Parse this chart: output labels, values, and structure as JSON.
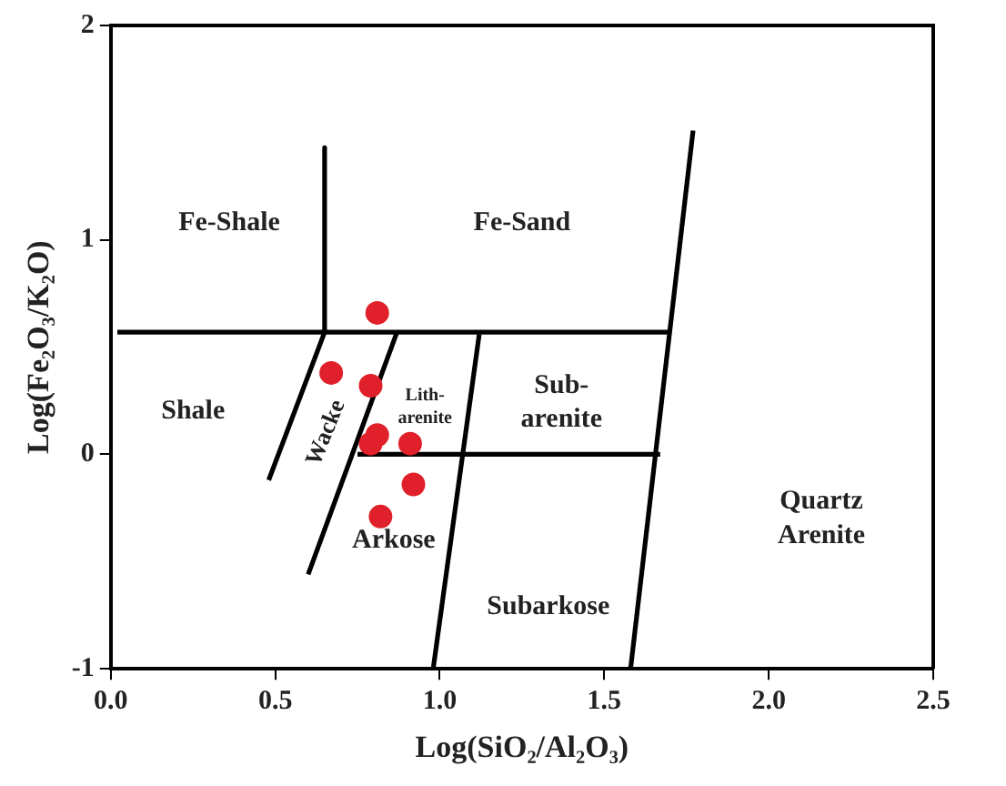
{
  "chart_data": {
    "type": "scatter",
    "xlabel": "Log(SiO₂/Al₂O₃)",
    "ylabel": "Log(Fe₂O₃/K₂O)",
    "xlim": [
      0,
      2.5
    ],
    "ylim": [
      -1,
      2
    ],
    "xticks": [
      {
        "value": 0,
        "label": "0.0"
      },
      {
        "value": 0.5,
        "label": "0.5"
      },
      {
        "value": 1,
        "label": "1.0"
      },
      {
        "value": 1.5,
        "label": "1.5"
      },
      {
        "value": 2,
        "label": "2.0"
      },
      {
        "value": 2.5,
        "label": "2.5"
      }
    ],
    "yticks": [
      -1,
      0,
      1,
      2
    ],
    "grid": false,
    "legend": false,
    "series": [
      {
        "type": "line",
        "color": "#000000",
        "marker": "none",
        "x": [
          0.65,
          0.65,
          0.48
        ],
        "values": [
          1.43,
          0.57,
          -0.12
        ]
      },
      {
        "type": "line",
        "color": "#000000",
        "marker": "none",
        "x": [
          0.02,
          1.7
        ],
        "values": [
          0.57,
          0.57
        ]
      },
      {
        "type": "line",
        "color": "#000000",
        "marker": "none",
        "x": [
          0.87,
          0.6
        ],
        "values": [
          0.57,
          -0.56
        ]
      },
      {
        "type": "line",
        "color": "#000000",
        "marker": "none",
        "x": [
          1.12,
          0.98
        ],
        "values": [
          0.56,
          -1
        ]
      },
      {
        "type": "line",
        "color": "#000000",
        "marker": "none",
        "x": [
          0.75,
          1.67
        ],
        "values": [
          0,
          0
        ]
      },
      {
        "type": "line",
        "color": "#000000",
        "marker": "none",
        "x": [
          1.77,
          1.58
        ],
        "values": [
          1.51,
          -1
        ]
      },
      {
        "type": "scatter",
        "color": "#e0202a",
        "marker": "circle",
        "x": [
          0.81,
          0.67,
          0.79,
          0.81,
          0.79,
          0.91,
          0.92,
          0.82
        ],
        "values": [
          0.66,
          0.38,
          0.32,
          0.09,
          0.05,
          0.05,
          -0.14,
          -0.29
        ]
      }
    ],
    "annotations": [
      "Fe-Shale",
      "Fe-Sand",
      "Shale",
      "Wacke",
      "Lith-\narenite",
      "Sub-\narenite",
      "Arkose",
      "Subarkose",
      "Quartz\nArenite"
    ]
  }
}
